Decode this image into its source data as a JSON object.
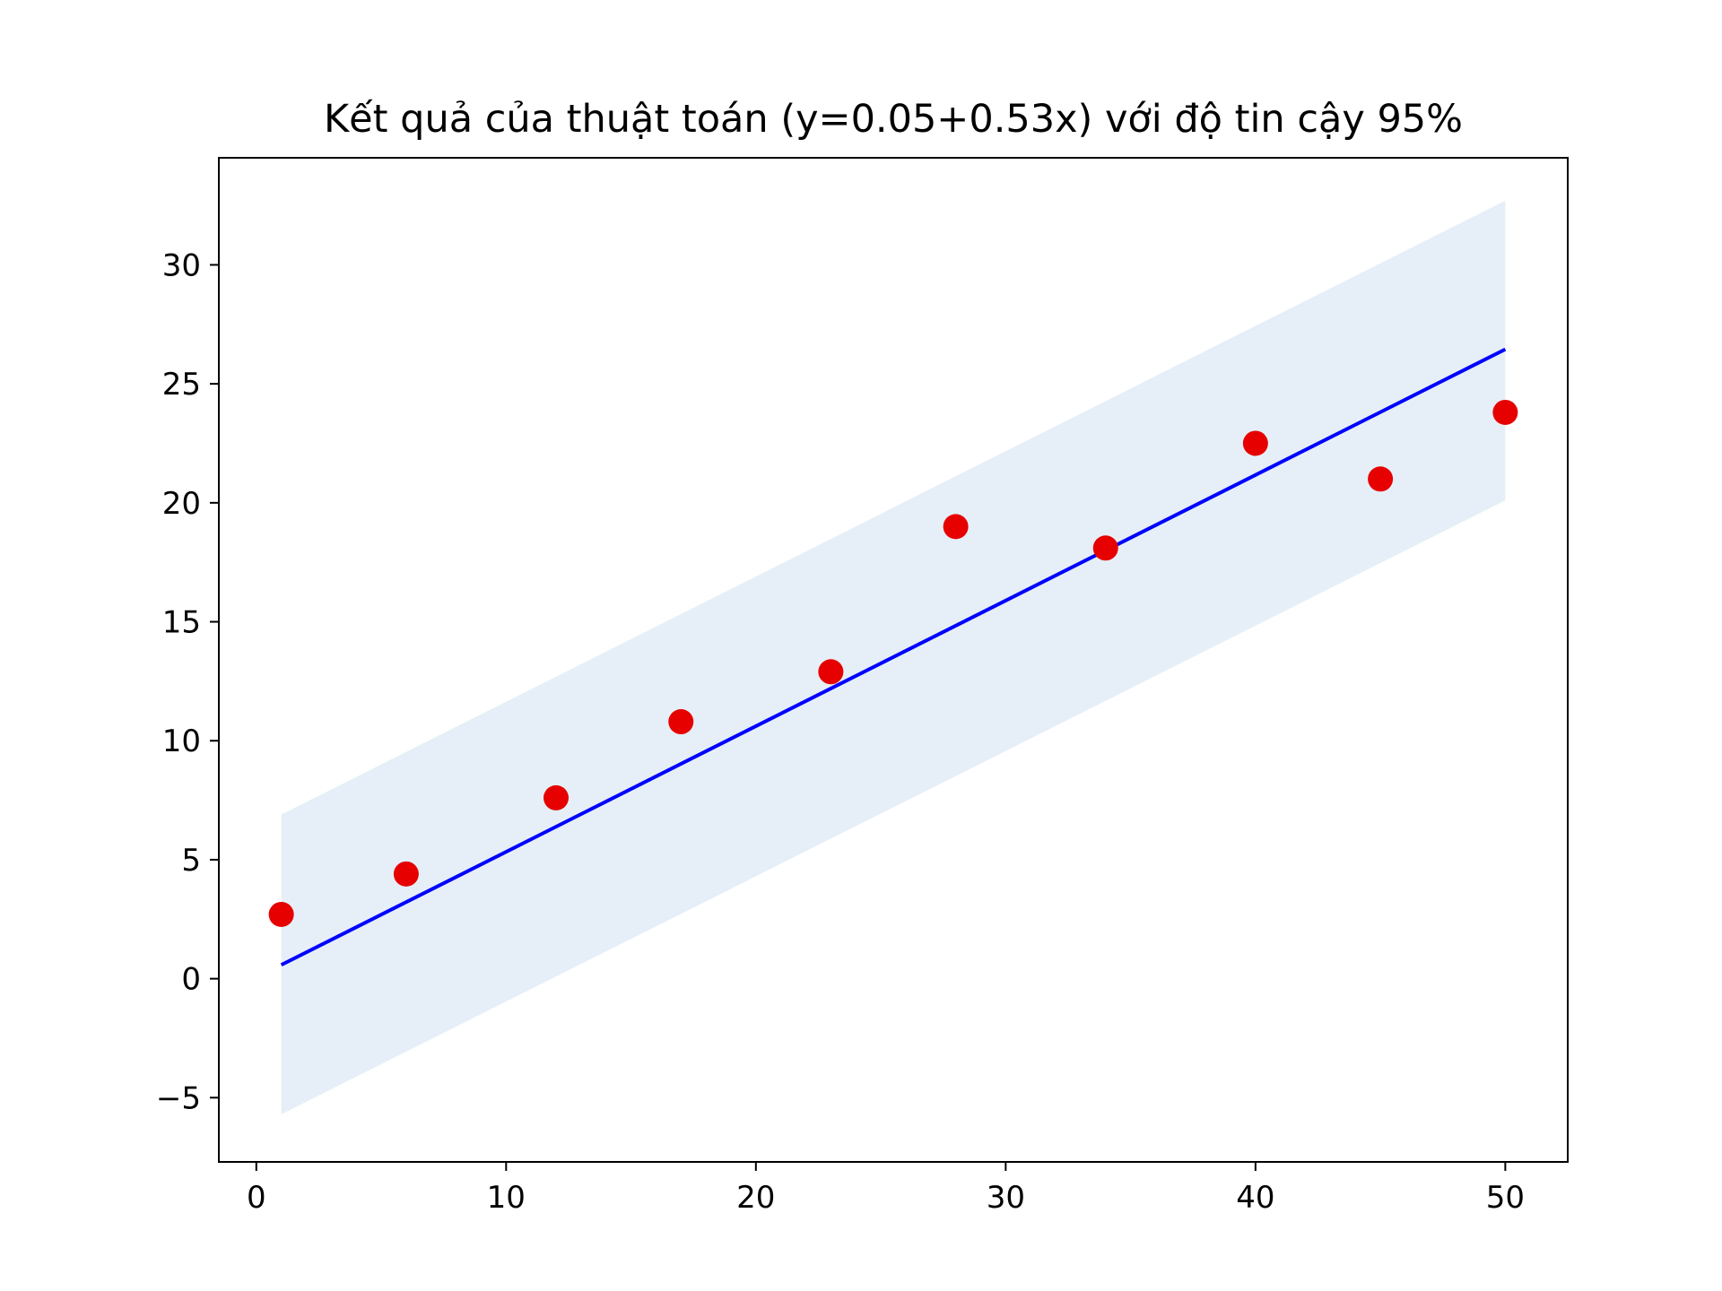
{
  "chart_data": {
    "type": "scatter",
    "title": "Kết quả của thuật toán (y=0.05+0.53x) với độ tin cậy 95%",
    "xlabel": "",
    "ylabel": "",
    "xlim": [
      -1.5,
      52.5
    ],
    "ylim": [
      -7.7,
      34.5
    ],
    "xticks": [
      0,
      10,
      20,
      30,
      40,
      50
    ],
    "xtick_labels": [
      "0",
      "10",
      "20",
      "30",
      "40",
      "50"
    ],
    "yticks": [
      -5,
      0,
      5,
      10,
      15,
      20,
      25,
      30
    ],
    "ytick_labels": [
      "−5",
      "0",
      "5",
      "10",
      "15",
      "20",
      "25",
      "30"
    ],
    "grid": false,
    "points": {
      "color": "#e60000",
      "x": [
        1,
        6,
        12,
        17,
        23,
        28,
        34,
        40,
        45,
        50
      ],
      "y": [
        2.7,
        4.4,
        7.6,
        10.8,
        12.9,
        19.0,
        18.1,
        22.5,
        21.0,
        23.8
      ]
    },
    "fit_line": {
      "color": "#0000ff",
      "x": [
        1,
        50
      ],
      "y": [
        0.58,
        26.45
      ]
    },
    "confidence_band": {
      "color": "#e6eff7",
      "x": [
        1,
        50
      ],
      "upper": [
        6.9,
        32.7
      ],
      "lower": [
        -5.7,
        20.1
      ]
    }
  }
}
